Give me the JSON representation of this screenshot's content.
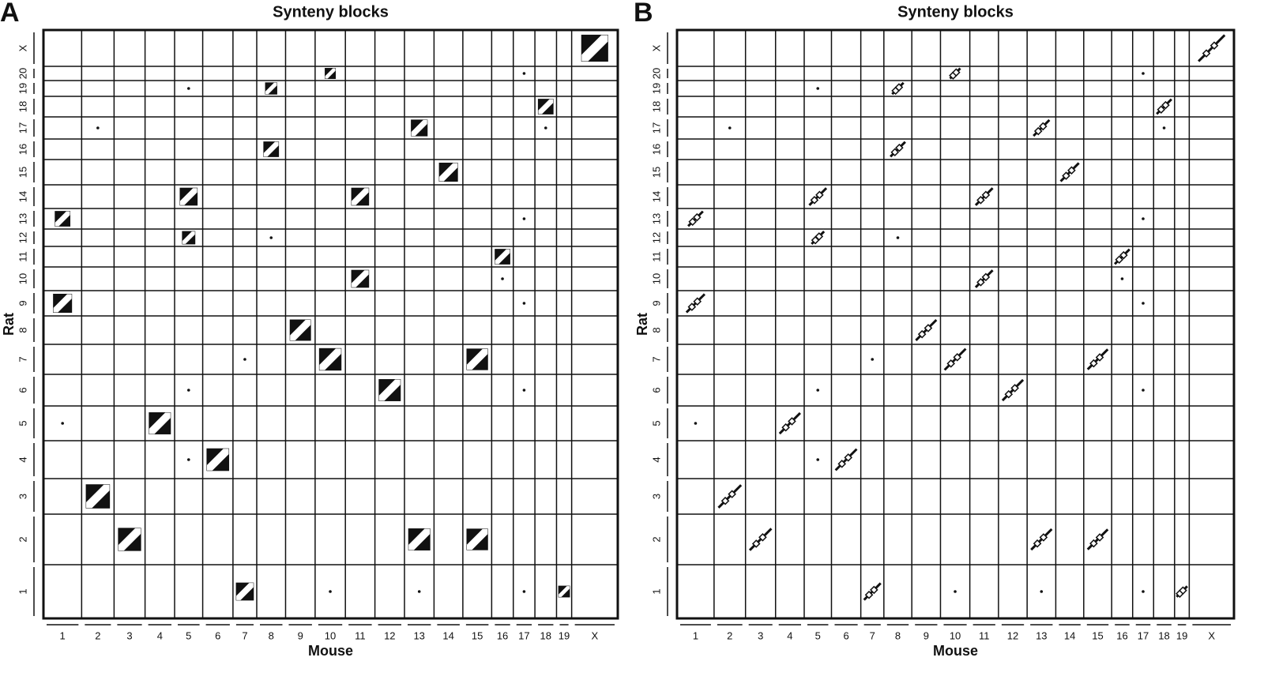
{
  "panels": [
    {
      "letter": "A",
      "title": "Synteny blocks",
      "x_label": "Mouse",
      "y_label": "Rat"
    },
    {
      "letter": "B",
      "title": "Synteny blocks",
      "x_label": "Mouse",
      "y_label": "Rat"
    }
  ],
  "mouse_chromosomes": [
    "1",
    "2",
    "3",
    "4",
    "5",
    "6",
    "7",
    "8",
    "9",
    "10",
    "11",
    "12",
    "13",
    "14",
    "15",
    "16",
    "17",
    "18",
    "19",
    "X"
  ],
  "rat_chromosomes": [
    "1",
    "2",
    "3",
    "4",
    "5",
    "6",
    "7",
    "8",
    "9",
    "10",
    "11",
    "12",
    "13",
    "14",
    "15",
    "16",
    "17",
    "18",
    "19",
    "20",
    "X"
  ]
}
